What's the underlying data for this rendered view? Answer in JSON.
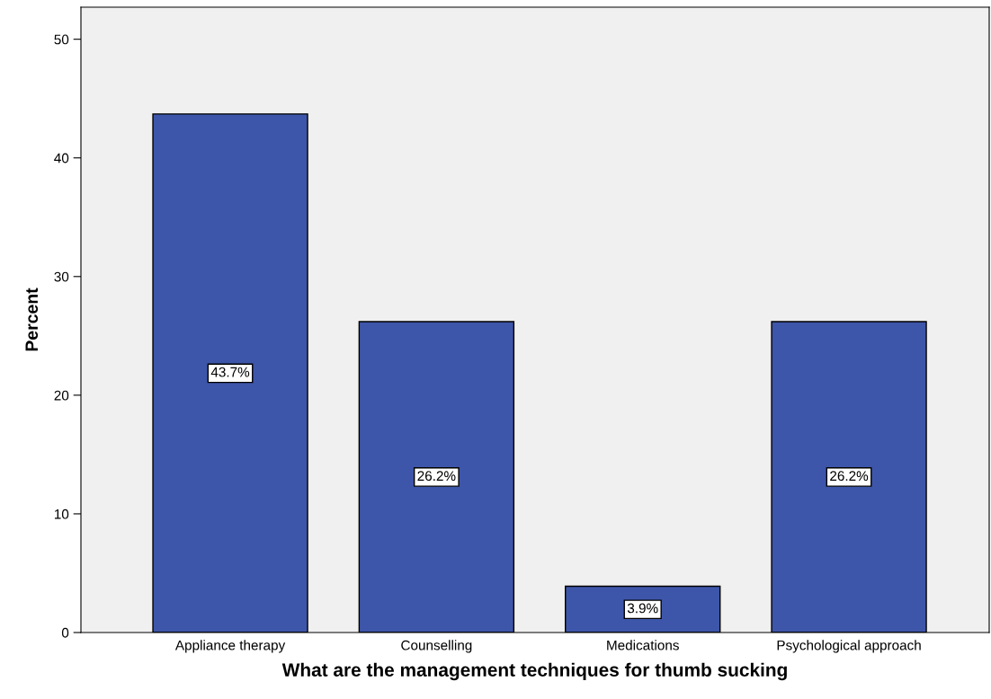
{
  "chart_data": {
    "type": "bar",
    "xlabel": "What are the management techniques for thumb sucking",
    "ylabel": "Percent",
    "categories": [
      "Appliance therapy",
      "Counselling",
      "Medications",
      "Psychological approach"
    ],
    "values": [
      43.7,
      26.2,
      3.9,
      26.2
    ],
    "value_labels": [
      "43.7%",
      "26.2%",
      "3.9%",
      "26.2%"
    ],
    "color": "#3e56a9",
    "ylim": [
      0,
      52.7
    ],
    "yticks": [
      0,
      10,
      20,
      30,
      40,
      50
    ],
    "grid": false,
    "legend": false
  }
}
